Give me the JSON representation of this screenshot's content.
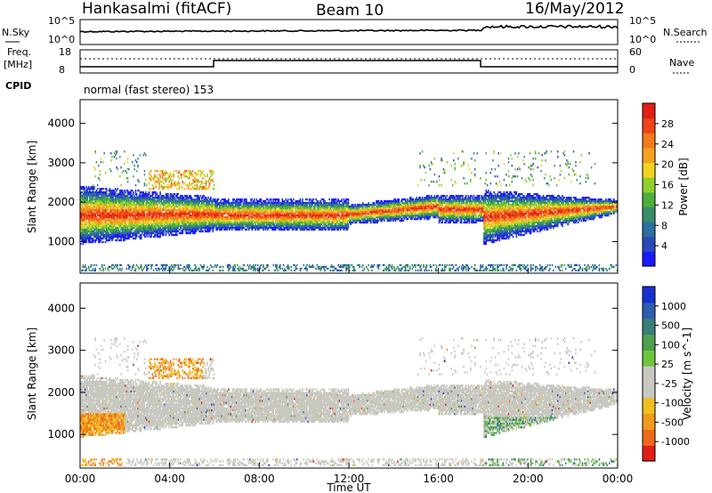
{
  "header": {
    "station": "Hankasalmi (fitACF)",
    "beam": "Beam 10",
    "date": "16/May/2012"
  },
  "noise_panel": {
    "left_label": "N.Sky",
    "right_label": "N.Search",
    "left_ticks": [
      "10^5",
      "10^0"
    ],
    "right_ticks": [
      "10^5",
      "10^0"
    ]
  },
  "freq_panel": {
    "left_label_line1": "Freq.",
    "left_label_line2": "[MHz]",
    "right_label": "Nave",
    "left_ticks": [
      "18",
      "8"
    ],
    "right_ticks": [
      "60",
      "0"
    ],
    "cpid_label": "CPID",
    "mode": "normal (fast stereo) 153"
  },
  "colors": {
    "power_scale": [
      "#1a1aff",
      "#2b4ab8",
      "#2c6fa0",
      "#3a8c6a",
      "#4cae3c",
      "#8fd02e",
      "#f0d420",
      "#f5a21f",
      "#f27a1a",
      "#ee4418",
      "#e21e16"
    ],
    "velocity_scale": [
      "#1a2fd0",
      "#2c5fb0",
      "#3b7f7a",
      "#4da050",
      "#6cc63c",
      "#c8c8c0",
      "#c8c8c0",
      "#f0c020",
      "#f29a1c",
      "#ee6a1a",
      "#e21e16"
    ],
    "background_scatter": "#c8c8c0"
  },
  "chart_data": [
    {
      "type": "heatmap",
      "title": "",
      "ylabel": "Slant Range [km]",
      "xlabel": "",
      "x_ticks": [
        "00:00",
        "04:00",
        "08:00",
        "12:00",
        "16:00",
        "20:00",
        "00:00"
      ],
      "y_ticks": [
        "1000",
        "2000",
        "3000",
        "4000"
      ],
      "ylim": [
        200,
        4600
      ],
      "colorbar": {
        "label": "Power [dB]",
        "ticks": [
          "4",
          "8",
          "12",
          "16",
          "20",
          "24",
          "28"
        ]
      },
      "bands": [
        {
          "time_h": [
            0,
            6
          ],
          "range_km": [
            1000,
            2300
          ],
          "peak_db": 28
        },
        {
          "time_h": [
            6,
            12
          ],
          "range_km": [
            1300,
            2000
          ],
          "peak_db": 24
        },
        {
          "time_h": [
            12,
            16
          ],
          "range_km": [
            1450,
            1900
          ],
          "peak_db": 24
        },
        {
          "time_h": [
            16,
            18
          ],
          "range_km": [
            1500,
            2100
          ],
          "peak_db": 28
        },
        {
          "time_h": [
            18,
            24
          ],
          "range_km": [
            1000,
            2200
          ],
          "peak_db": 28
        }
      ]
    },
    {
      "type": "heatmap",
      "title": "",
      "ylabel": "Slant Range [km]",
      "xlabel": "Time UT",
      "x_ticks": [
        "00:00",
        "04:00",
        "08:00",
        "12:00",
        "16:00",
        "20:00",
        "00:00"
      ],
      "y_ticks": [
        "1000",
        "2000",
        "3000",
        "4000"
      ],
      "ylim": [
        200,
        4600
      ],
      "colorbar": {
        "label": "Velocity [m s^-1]",
        "ticks": [
          "1000",
          "500",
          "100",
          "25",
          "-25",
          "-100",
          "-500",
          "-1000"
        ]
      }
    }
  ]
}
